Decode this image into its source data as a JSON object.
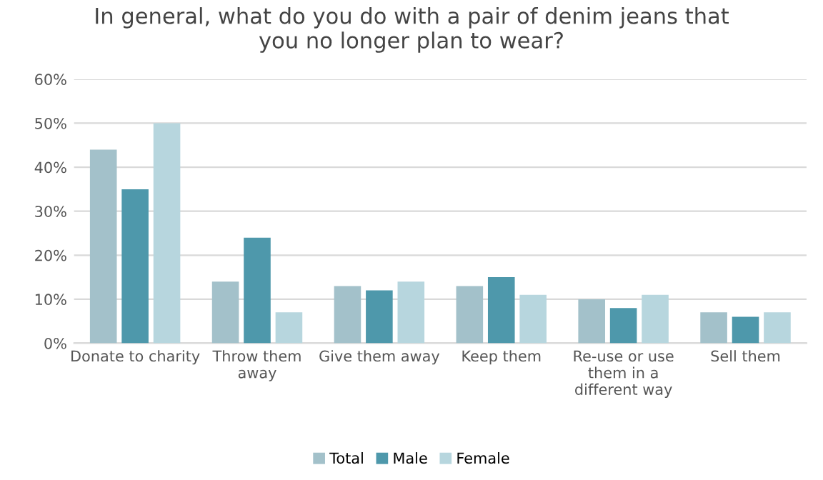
{
  "chart_data": {
    "type": "bar",
    "title": "In general, what do you do with a pair of denim jeans that\nyou no longer plan to wear?",
    "categories": [
      "Donate to charity",
      "Throw them\naway",
      "Give them away",
      "Keep them",
      "Re-use or use\nthem in a\ndifferent way",
      "Sell them"
    ],
    "series": [
      {
        "name": "Total",
        "color": "#a3c1ca",
        "values": [
          44,
          14,
          13,
          13,
          10,
          7
        ]
      },
      {
        "name": "Male",
        "color": "#4e98ab",
        "values": [
          35,
          24,
          12,
          15,
          8,
          6
        ]
      },
      {
        "name": "Female",
        "color": "#b7d6de",
        "values": [
          50,
          7,
          14,
          11,
          11,
          7
        ]
      }
    ],
    "ylim": [
      0,
      60
    ],
    "yticks": [
      {
        "value": 0,
        "label": "0%"
      },
      {
        "value": 10,
        "label": "10%"
      },
      {
        "value": 20,
        "label": "20%"
      },
      {
        "value": 30,
        "label": "30%"
      },
      {
        "value": 40,
        "label": "40%"
      },
      {
        "value": 50,
        "label": "50%"
      },
      {
        "value": 60,
        "label": "60%"
      }
    ],
    "grid": "y",
    "legend": "bottom"
  }
}
